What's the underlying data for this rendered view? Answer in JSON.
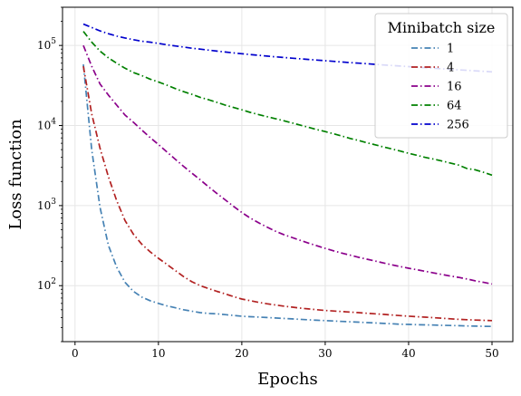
{
  "chart_data": {
    "type": "line",
    "xlabel": "Epochs",
    "ylabel": "Loss function",
    "xlim": [
      -1.5,
      52.5
    ],
    "ylim": [
      20,
      300000
    ],
    "yscale": "log",
    "grid": true,
    "xticks": [
      0,
      10,
      20,
      30,
      40,
      50
    ],
    "yticks": [
      100,
      1000,
      10000,
      100000
    ],
    "legend": {
      "title": "Minibatch size",
      "placement": "top-right"
    },
    "x": [
      1,
      2,
      3,
      4,
      5,
      6,
      7,
      8,
      9,
      10,
      11,
      12,
      13,
      14,
      15,
      16,
      17,
      18,
      19,
      20,
      21,
      22,
      23,
      24,
      25,
      26,
      27,
      28,
      29,
      30,
      31,
      32,
      33,
      34,
      35,
      36,
      37,
      38,
      39,
      40,
      41,
      42,
      43,
      44,
      45,
      46,
      47,
      48,
      49,
      50
    ],
    "series": [
      {
        "name": "1",
        "color": "#4682b4",
        "values": [
          58000,
          5000,
          950,
          320,
          170,
          110,
          85,
          72,
          65,
          60,
          56,
          53,
          50,
          48,
          46,
          45,
          44.5,
          43.5,
          42.5,
          41.5,
          41,
          40.5,
          40,
          39.5,
          39,
          38.5,
          38,
          37.5,
          37,
          36.6,
          36.2,
          35.8,
          35.4,
          35,
          34.6,
          34.2,
          33.8,
          33.4,
          33,
          32.8,
          32.6,
          32.4,
          32.2,
          32,
          31.8,
          31.6,
          31.4,
          31.2,
          31.1,
          31
        ]
      },
      {
        "name": "4",
        "color": "#b22222",
        "values": [
          55000,
          14000,
          5200,
          2300,
          1150,
          650,
          440,
          330,
          265,
          220,
          185,
          155,
          130,
          112,
          100,
          92,
          85,
          79,
          73,
          68,
          65,
          62,
          59.5,
          57.5,
          55.5,
          54,
          52.5,
          51.2,
          50,
          49,
          48.2,
          47.5,
          46.8,
          46,
          45.2,
          44.5,
          43.8,
          43,
          42.3,
          41.6,
          41,
          40.4,
          39.8,
          39.2,
          38.6,
          38,
          37.6,
          37.2,
          36.9,
          36.6
        ]
      },
      {
        "name": "16",
        "color": "#8b008b",
        "values": [
          100000,
          55000,
          33000,
          24000,
          18000,
          13500,
          11000,
          8800,
          7100,
          5800,
          4700,
          3800,
          3100,
          2550,
          2100,
          1720,
          1420,
          1180,
          980,
          820,
          700,
          610,
          540,
          480,
          435,
          400,
          368,
          340,
          315,
          292,
          272,
          255,
          240,
          226,
          214,
          203,
          192,
          182,
          173,
          165,
          158,
          151,
          144,
          138,
          132,
          127,
          121,
          115,
          110,
          105
        ]
      },
      {
        "name": "64",
        "color": "#008000",
        "values": [
          150000,
          110000,
          85000,
          70000,
          60000,
          52000,
          46000,
          42000,
          38000,
          35000,
          32000,
          29000,
          26500,
          24500,
          22500,
          21000,
          19500,
          18000,
          16800,
          15700,
          14600,
          13700,
          12900,
          12200,
          11500,
          10800,
          10100,
          9500,
          8900,
          8400,
          7900,
          7400,
          6900,
          6500,
          6100,
          5750,
          5400,
          5100,
          4800,
          4500,
          4250,
          4000,
          3800,
          3600,
          3400,
          3200,
          2900,
          2800,
          2600,
          2400
        ]
      },
      {
        "name": "256",
        "color": "#0000cd",
        "values": [
          185000,
          168000,
          152000,
          140000,
          131000,
          124000,
          118000,
          113000,
          110000,
          106000,
          102000,
          98500,
          95500,
          92500,
          90000,
          87500,
          85000,
          82800,
          80700,
          78800,
          77000,
          75300,
          73700,
          72200,
          70800,
          69400,
          68100,
          66800,
          65600,
          64400,
          63300,
          62200,
          61100,
          60100,
          59100,
          58100,
          57100,
          56200,
          55300,
          54400,
          53500,
          52700,
          51900,
          51100,
          50300,
          49600,
          48900,
          48200,
          47500,
          46800
        ]
      }
    ]
  }
}
